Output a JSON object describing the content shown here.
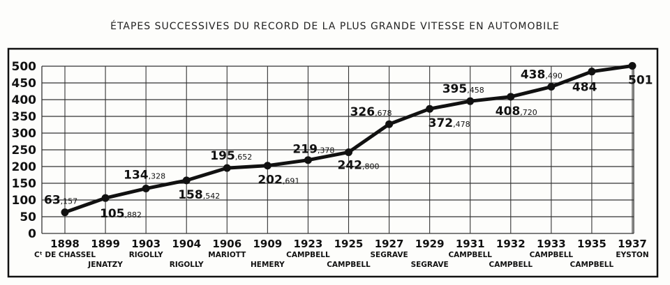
{
  "chart_data": {
    "type": "line",
    "title": "ÉTAPES SUCCESSIVES DU RECORD DE LA PLUS GRANDE VITESSE EN AUTOMOBILE",
    "xlabel": "",
    "ylabel": "",
    "ylim": [
      0,
      500
    ],
    "yticks": [
      "0",
      "50",
      "100",
      "150",
      "200",
      "250",
      "300",
      "350",
      "400",
      "450",
      "500"
    ],
    "grid": true,
    "categories": [
      "1898",
      "1899",
      "1903",
      "1904",
      "1906",
      "1909",
      "1923",
      "1925",
      "1927",
      "1929",
      "1931",
      "1932",
      "1933",
      "1935",
      "1937"
    ],
    "drivers": [
      "Cᵗ DE CHASSEL",
      "JENATZY",
      "RIGOLLY",
      "RIGOLLY",
      "MARIOTT",
      "HEMERY",
      "CAMPBELL",
      "CAMPBELL",
      "SEGRAVE",
      "SEGRAVE",
      "CAMPBELL",
      "CAMPBELL",
      "CAMPBELL",
      "CAMPBELL",
      "EYSTON"
    ],
    "values": [
      63.157,
      105.882,
      134.328,
      158.542,
      195.652,
      202.691,
      219.378,
      242.8,
      326.678,
      372.478,
      395.458,
      408.72,
      438.49,
      484,
      501
    ],
    "value_labels": [
      {
        "int": "63",
        "dec": ",157"
      },
      {
        "int": "105",
        "dec": ",882"
      },
      {
        "int": "134",
        "dec": ",328"
      },
      {
        "int": "158",
        "dec": ",542"
      },
      {
        "int": "195",
        "dec": ",652"
      },
      {
        "int": "202",
        "dec": ",691"
      },
      {
        "int": "219",
        "dec": ",378"
      },
      {
        "int": "242",
        "dec": ",800"
      },
      {
        "int": "326",
        "dec": ",678"
      },
      {
        "int": "372",
        "dec": ",478"
      },
      {
        "int": "395",
        "dec": ",458"
      },
      {
        "int": "408",
        "dec": ",720"
      },
      {
        "int": "438",
        "dec": ",490"
      },
      {
        "int": "484",
        "dec": ""
      },
      {
        "int": "501",
        "dec": ""
      }
    ],
    "color": "#111111"
  }
}
